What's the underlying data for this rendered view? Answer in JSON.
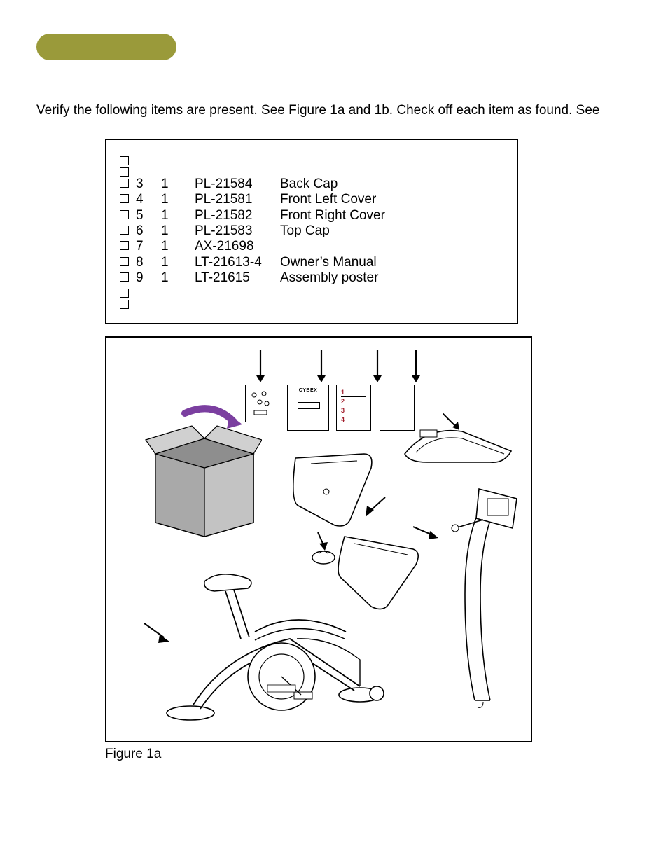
{
  "colors": {
    "pill": "#9a9a3a",
    "box_fill": "#b7b7b7",
    "box_inner": "#8e8e8e",
    "ribbon": "#7b3fa0",
    "text": "#000000",
    "page_bg": "#ffffff",
    "callout_red": "#a11c2a"
  },
  "intro_text": "Verify the following items are present. See Figure 1a and 1b. Check off each item as found. See",
  "items": [
    {
      "id": "",
      "qty": "",
      "pn": "",
      "desc": ""
    },
    {
      "id": "",
      "qty": "",
      "pn": "",
      "desc": ""
    },
    {
      "id": "3",
      "qty": "1",
      "pn": "PL-21584",
      "desc": "Back Cap"
    },
    {
      "id": "4",
      "qty": "1",
      "pn": "PL-21581",
      "desc": "Front Left Cover"
    },
    {
      "id": "5",
      "qty": "1",
      "pn": "PL-21582",
      "desc": "Front Right Cover"
    },
    {
      "id": "6",
      "qty": "1",
      "pn": "PL-21583",
      "desc": "Top Cap"
    },
    {
      "id": "7",
      "qty": "1",
      "pn": "AX-21698",
      "desc": ""
    },
    {
      "id": "8",
      "qty": "1",
      "pn": "LT-21613-4",
      "desc": "Owner’s Manual"
    },
    {
      "id": "9",
      "qty": "1",
      "pn": "LT-21615",
      "desc": "Assembly poster"
    },
    {
      "id": "",
      "qty": "",
      "pn": "",
      "desc": ""
    },
    {
      "id": "",
      "qty": "",
      "pn": "",
      "desc": ""
    }
  ],
  "figure": {
    "caption": "Figure 1a",
    "mini_card_lines": [
      "1",
      "2",
      "3",
      "4"
    ],
    "brand_label": "CYBEX"
  }
}
